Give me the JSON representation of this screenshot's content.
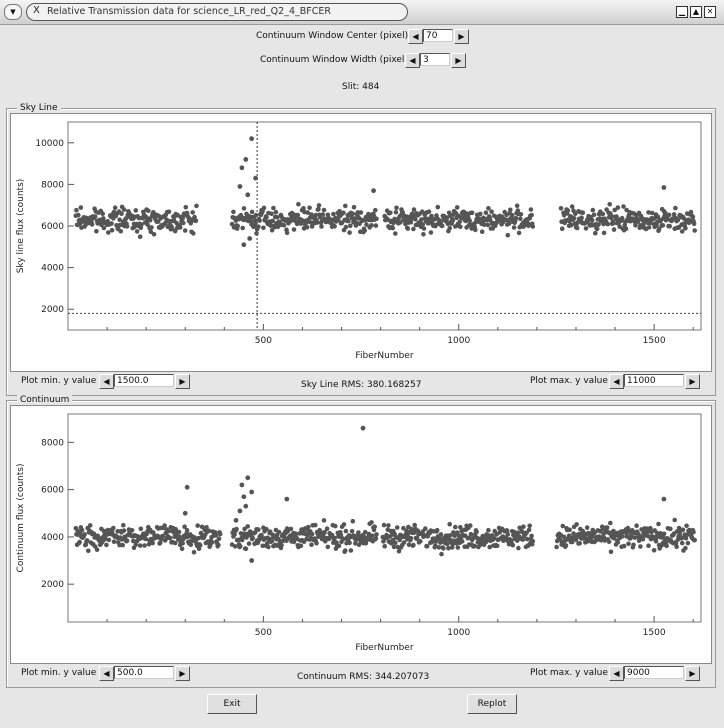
{
  "window": {
    "title": "Relative Transmission data for science_LR_red_Q2_4_BFCER",
    "controls": [
      "minimize",
      "maximize",
      "close"
    ]
  },
  "header": {
    "center_label": "Continuum Window Center (pixel)",
    "center_value": "70",
    "width_label": "Continuum Window Width (pixel)",
    "width_value": "3",
    "slit_text": "Slit: 484"
  },
  "sky_panel": {
    "frame_title": "Sky Line",
    "min_label": "Plot min. y value",
    "min_value": "1500.0",
    "max_label": "Plot max. y value",
    "max_value": "11000",
    "rms_text": "Sky Line RMS: 380.168257"
  },
  "cont_panel": {
    "frame_title": "Continuum",
    "min_label": "Plot min. y value",
    "min_value": "500.0",
    "max_label": "Plot max. y value",
    "max_value": "9000",
    "rms_text": "Continuum RMS: 344.207073"
  },
  "buttons": {
    "exit": "Exit",
    "replot": "Replot"
  },
  "chart_data": [
    {
      "type": "scatter",
      "xlabel": "FiberNumber",
      "ylabel": "Sky line flux (counts)",
      "xlim": [
        0,
        1620
      ],
      "ylim": [
        1000,
        11000
      ],
      "x_ticks": [
        500,
        1000,
        1500
      ],
      "y_ticks": [
        2000,
        4000,
        6000,
        8000,
        10000
      ],
      "baseline": 6300,
      "scatter": 380,
      "gaps": [
        [
          330,
          420
        ],
        [
          790,
          810
        ],
        [
          1190,
          1260
        ]
      ],
      "vline_x": 484,
      "hline_y": 1800,
      "highlights": [
        [
          470,
          10200
        ],
        [
          455,
          9200
        ],
        [
          445,
          8800
        ],
        [
          480,
          8300
        ],
        [
          440,
          7900
        ],
        [
          460,
          7500
        ],
        [
          782,
          7700
        ],
        [
          1525,
          7850
        ],
        [
          450,
          5100
        ],
        [
          465,
          5400
        ]
      ],
      "color": "#555555"
    },
    {
      "type": "scatter",
      "xlabel": "FiberNumber",
      "ylabel": "Continuum flux (counts)",
      "xlim": [
        0,
        1620
      ],
      "ylim": [
        400,
        9200
      ],
      "x_ticks": [
        500,
        1000,
        1500
      ],
      "y_ticks": [
        2000,
        4000,
        6000,
        8000
      ],
      "baseline": 4000,
      "scatter": 340,
      "gaps": [
        [
          390,
          420
        ],
        [
          790,
          805
        ],
        [
          1190,
          1250
        ]
      ],
      "highlights": [
        [
          755,
          8600
        ],
        [
          305,
          6100
        ],
        [
          460,
          6500
        ],
        [
          445,
          6200
        ],
        [
          470,
          5900
        ],
        [
          450,
          5700
        ],
        [
          560,
          5600
        ],
        [
          1525,
          5600
        ],
        [
          455,
          5300
        ],
        [
          440,
          5100
        ],
        [
          300,
          5000
        ],
        [
          470,
          3000
        ],
        [
          430,
          4700
        ]
      ],
      "color": "#555555"
    }
  ]
}
